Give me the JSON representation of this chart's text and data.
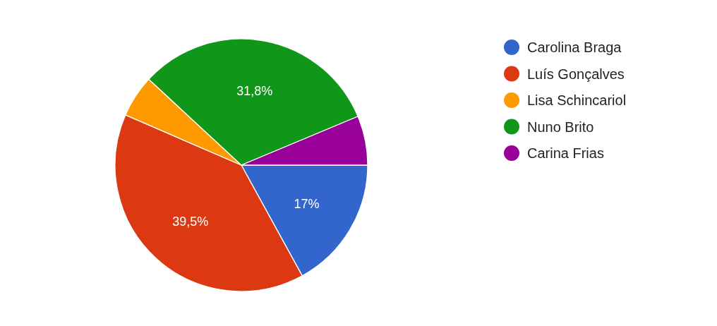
{
  "chart_data": {
    "type": "pie",
    "categories": [
      "Carolina Braga",
      "Luís Gonçalves",
      "Lisa Schincariol",
      "Nuno Brito",
      "Carina Frias"
    ],
    "values": [
      17,
      39.5,
      5.4,
      31.8,
      6.3
    ],
    "colors": [
      "#3366cc",
      "#dc3912",
      "#ff9900",
      "#109618",
      "#990099"
    ],
    "value_labels": [
      "17%",
      "39,5%",
      null,
      "31,8%",
      null
    ],
    "legend": "right"
  }
}
